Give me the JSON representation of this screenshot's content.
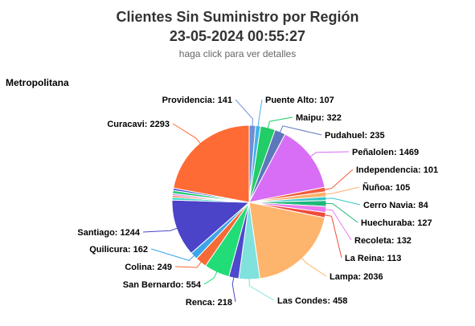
{
  "header": {
    "title_line1": "Clientes Sin Suministro por Región",
    "title_line2": "23-05-2024 00:55:27",
    "subtitle": "haga click para ver detalles"
  },
  "region_heading": "Metropolitana",
  "chart_data": {
    "type": "pie",
    "title": "Metropolitana",
    "slices": [
      {
        "name": "Providencia",
        "value": 141,
        "color": "#6e8fd6"
      },
      {
        "name": "Puente Alto",
        "value": 107,
        "color": "#45b2e8"
      },
      {
        "name": "Maipu",
        "value": 322,
        "color": "#22cc66"
      },
      {
        "name": "Pudahuel",
        "value": 235,
        "color": "#5d77bb"
      },
      {
        "name": "Peñalolen",
        "value": 1469,
        "color": "#d86ef5"
      },
      {
        "name": "Independencia",
        "value": 101,
        "color": "#f25c3b"
      },
      {
        "name": "Ñuñoa",
        "value": 105,
        "color": "#fdb06a"
      },
      {
        "name": "Cerro Navia",
        "value": 84,
        "color": "#36c6c4"
      },
      {
        "name": "Huechuraba",
        "value": 127,
        "color": "#1fb87a"
      },
      {
        "name": "Recoleta",
        "value": 132,
        "color": "#e87cf0"
      },
      {
        "name": "La Reina",
        "value": 113,
        "color": "#ef4b3a"
      },
      {
        "name": "Lampa",
        "value": 2036,
        "color": "#fdb46c"
      },
      {
        "name": "Las Condes",
        "value": 458,
        "color": "#80e1dd"
      },
      {
        "name": "Renca",
        "value": 218,
        "color": "#4d48cc"
      },
      {
        "name": "San Bernardo",
        "value": 554,
        "color": "#22dd77"
      },
      {
        "name": "Colina",
        "value": 249,
        "color": "#f56a35"
      },
      {
        "name": "Quilicura",
        "value": 162,
        "color": "#3da5e8"
      },
      {
        "name": "Santiago",
        "value": 1244,
        "color": "#4b44c8"
      },
      {
        "name": "Curacavi",
        "value": 2293,
        "color": "#ff6b35"
      }
    ],
    "minor_slices": [
      {
        "value": 60,
        "color": "#3dd6c8"
      },
      {
        "value": 40,
        "color": "#f06a3a"
      },
      {
        "value": 40,
        "color": "#d977f0"
      },
      {
        "value": 70,
        "color": "#22cc77"
      },
      {
        "value": 50,
        "color": "#4a4ad0"
      }
    ]
  }
}
